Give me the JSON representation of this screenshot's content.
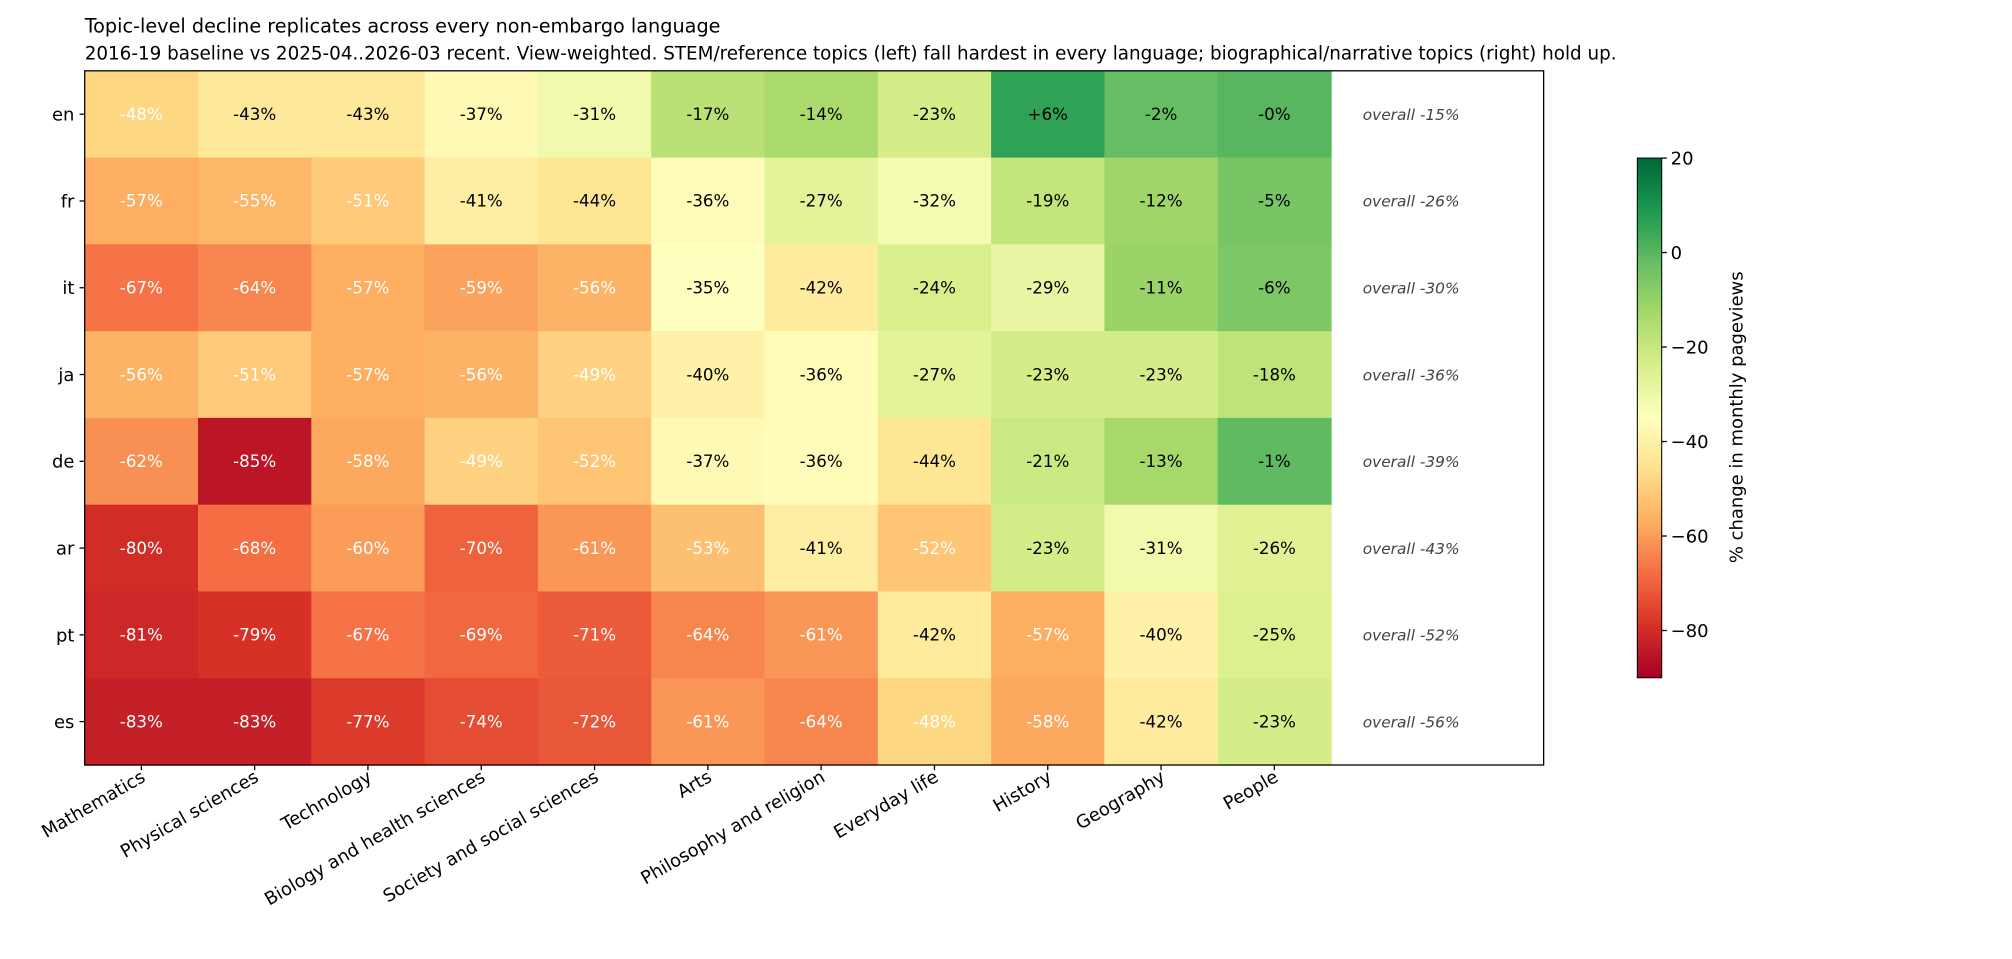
{
  "chart_data": {
    "type": "heatmap",
    "title": "Topic-level decline replicates across every non-embargo language",
    "subtitle": "2016-19 baseline vs 2025-04..2026-03 recent. View-weighted. STEM/reference topics (left) fall hardest in every language; biographical/narrative topics (right) hold up.",
    "columns": [
      "Mathematics",
      "Physical sciences",
      "Technology",
      "Biology and health sciences",
      "Society and social sciences",
      "Arts",
      "Philosophy and religion",
      "Everyday life",
      "History",
      "Geography",
      "People"
    ],
    "rows": [
      "en",
      "fr",
      "it",
      "ja",
      "de",
      "ar",
      "pt",
      "es"
    ],
    "values": [
      [
        -48,
        -43,
        -43,
        -37,
        -31,
        -17,
        -14,
        -23,
        6,
        -2,
        0
      ],
      [
        -57,
        -55,
        -51,
        -41,
        -44,
        -36,
        -27,
        -32,
        -19,
        -12,
        -5
      ],
      [
        -67,
        -64,
        -57,
        -59,
        -56,
        -35,
        -42,
        -24,
        -29,
        -11,
        -6
      ],
      [
        -56,
        -51,
        -57,
        -56,
        -49,
        -40,
        -36,
        -27,
        -23,
        -23,
        -18
      ],
      [
        -62,
        -85,
        -58,
        -49,
        -52,
        -37,
        -36,
        -44,
        -21,
        -13,
        -1
      ],
      [
        -80,
        -68,
        -60,
        -70,
        -61,
        -53,
        -41,
        -52,
        -23,
        -31,
        -26
      ],
      [
        -81,
        -79,
        -67,
        -69,
        -71,
        -64,
        -61,
        -42,
        -57,
        -40,
        -25
      ],
      [
        -83,
        -83,
        -77,
        -74,
        -72,
        -61,
        -64,
        -48,
        -58,
        -42,
        -23
      ]
    ],
    "cell_labels": [
      [
        "-48%",
        "-43%",
        "-43%",
        "-37%",
        "-31%",
        "-17%",
        "-14%",
        "-23%",
        "+6%",
        "-2%",
        "-0%"
      ],
      [
        "-57%",
        "-55%",
        "-51%",
        "-41%",
        "-44%",
        "-36%",
        "-27%",
        "-32%",
        "-19%",
        "-12%",
        "-5%"
      ],
      [
        "-67%",
        "-64%",
        "-57%",
        "-59%",
        "-56%",
        "-35%",
        "-42%",
        "-24%",
        "-29%",
        "-11%",
        "-6%"
      ],
      [
        "-56%",
        "-51%",
        "-57%",
        "-56%",
        "-49%",
        "-40%",
        "-36%",
        "-27%",
        "-23%",
        "-23%",
        "-18%"
      ],
      [
        "-62%",
        "-85%",
        "-58%",
        "-49%",
        "-52%",
        "-37%",
        "-36%",
        "-44%",
        "-21%",
        "-13%",
        "-1%"
      ],
      [
        "-80%",
        "-68%",
        "-60%",
        "-70%",
        "-61%",
        "-53%",
        "-41%",
        "-52%",
        "-23%",
        "-31%",
        "-26%"
      ],
      [
        "-81%",
        "-79%",
        "-67%",
        "-69%",
        "-71%",
        "-64%",
        "-61%",
        "-42%",
        "-57%",
        "-40%",
        "-25%"
      ],
      [
        "-83%",
        "-83%",
        "-77%",
        "-74%",
        "-72%",
        "-61%",
        "-64%",
        "-48%",
        "-58%",
        "-42%",
        "-23%"
      ]
    ],
    "row_annotations": [
      "overall -15%",
      "overall -26%",
      "overall -30%",
      "overall -36%",
      "overall -39%",
      "overall -43%",
      "overall -52%",
      "overall -56%"
    ],
    "colormap": "RdYlGn",
    "colormap_stops": [
      "#a50026",
      "#d73027",
      "#f46d43",
      "#fdae61",
      "#fee08b",
      "#ffffbf",
      "#d9ef8b",
      "#a6d96a",
      "#66bd63",
      "#1a9850",
      "#006837"
    ],
    "vmin": -90,
    "vmax": 20,
    "colorbar": {
      "label": "% change in monthly pageviews",
      "ticks": [
        20,
        0,
        -20,
        -40,
        -60,
        -80
      ],
      "tick_labels": [
        "20",
        "0",
        "−20",
        "−40",
        "−60",
        "−80"
      ]
    }
  }
}
